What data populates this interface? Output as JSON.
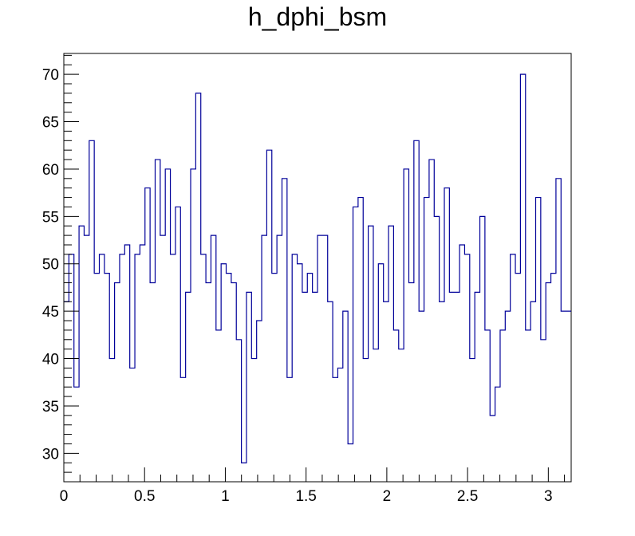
{
  "chart_data": {
    "type": "histogram",
    "title": "h_dphi_bsm",
    "xlabel": "",
    "ylabel": "",
    "xlim": [
      0,
      3.14159
    ],
    "ylim": [
      27.0,
      72.2
    ],
    "bins": 100,
    "line_color": "#000099",
    "xticks": [
      {
        "value": 0,
        "label": "0"
      },
      {
        "value": 0.5,
        "label": "0.5"
      },
      {
        "value": 1,
        "label": "1"
      },
      {
        "value": 1.5,
        "label": "1.5"
      },
      {
        "value": 2,
        "label": "2"
      },
      {
        "value": 2.5,
        "label": "2.5"
      },
      {
        "value": 3,
        "label": "3"
      }
    ],
    "yticks": [
      {
        "value": 30,
        "label": "30"
      },
      {
        "value": 35,
        "label": "35"
      },
      {
        "value": 40,
        "label": "40"
      },
      {
        "value": 45,
        "label": "45"
      },
      {
        "value": 50,
        "label": "50"
      },
      {
        "value": 55,
        "label": "55"
      },
      {
        "value": 60,
        "label": "60"
      },
      {
        "value": 65,
        "label": "65"
      },
      {
        "value": 70,
        "label": "70"
      }
    ],
    "values": [
      46,
      51,
      37,
      54,
      53,
      63,
      49,
      51,
      49,
      40,
      48,
      51,
      52,
      39,
      51,
      52,
      58,
      48,
      61,
      53,
      60,
      51,
      56,
      38,
      47,
      60,
      68,
      51,
      48,
      53,
      43,
      50,
      49,
      48,
      42,
      29,
      47,
      40,
      44,
      53,
      62,
      49,
      53,
      59,
      38,
      51,
      50,
      47,
      49,
      47,
      53,
      53,
      46,
      38,
      39,
      45,
      31,
      56,
      57,
      40,
      54,
      41,
      50,
      46,
      54,
      43,
      41,
      60,
      48,
      63,
      45,
      57,
      61,
      55,
      46,
      58,
      47,
      47,
      52,
      51,
      40,
      47,
      55,
      43,
      34,
      37,
      43,
      45,
      51,
      49,
      70,
      43,
      46,
      57,
      42,
      48,
      49,
      59,
      45,
      45
    ]
  }
}
